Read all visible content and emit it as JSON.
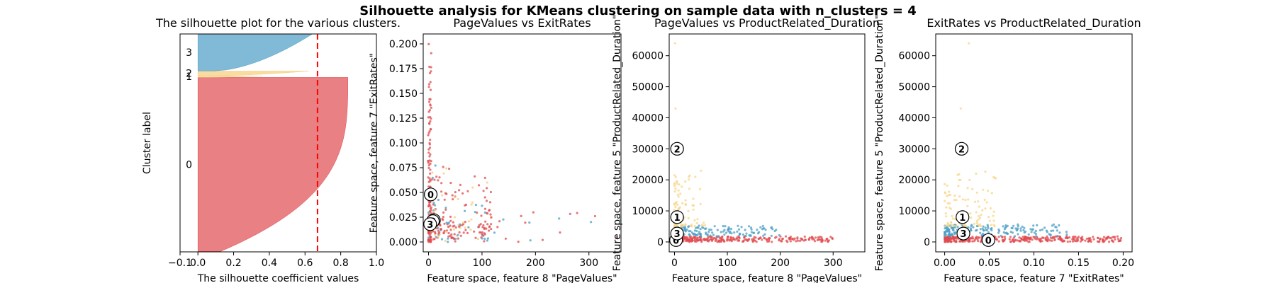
{
  "suptitle": "Silhouette analysis for KMeans clustering on sample data with n_clusters = 4",
  "colors": {
    "cluster_0": "#e04a4e",
    "cluster_1": "#f7d58a",
    "cluster_2": "#f5cd7a",
    "cluster_3": "#4a9dc4",
    "avg_line": "#ff0000"
  },
  "chart_data": [
    {
      "type": "area",
      "title": "The silhouette plot for the various clusters.",
      "xlabel": "The silhouette coefficient values",
      "ylabel": "Cluster label",
      "xlim": [
        -0.1,
        1.0
      ],
      "xticks": [
        "−0.1",
        "0.0",
        "0.2",
        "0.4",
        "0.6",
        "0.8",
        "1.0"
      ],
      "xtick_values": [
        -0.1,
        0.0,
        0.2,
        0.4,
        0.6,
        0.8,
        1.0
      ],
      "average_silhouette": 0.67,
      "clusters": [
        {
          "label": "0",
          "size": 9900,
          "max": 0.84,
          "min": 0.0
        },
        {
          "label": "1",
          "size": 80,
          "max": 0.36,
          "min": 0.0
        },
        {
          "label": "2",
          "size": 260,
          "max": 0.62,
          "min": 0.0
        },
        {
          "label": "3",
          "size": 2090,
          "max": 0.64,
          "min": 0.0
        }
      ]
    },
    {
      "type": "scatter",
      "title": "PageValues vs ExitRates",
      "xlabel": "Feature space, feature 8 \"PageValues\"",
      "ylabel": "Feature space, feature 7 \"ExitRates\"",
      "xlim": [
        -10,
        360
      ],
      "ylim": [
        -0.01,
        0.21
      ],
      "xticks": [
        "0",
        "100",
        "200",
        "300"
      ],
      "xtick_values": [
        0,
        100,
        200,
        300
      ],
      "yticks": [
        "0.000",
        "0.025",
        "0.050",
        "0.075",
        "0.100",
        "0.125",
        "0.150",
        "0.175",
        "0.200"
      ],
      "ytick_values": [
        0,
        0.025,
        0.05,
        0.075,
        0.1,
        0.125,
        0.15,
        0.175,
        0.2
      ],
      "centers": [
        {
          "label": "0",
          "x": 4,
          "y": 0.048
        },
        {
          "label": "1",
          "x": 10,
          "y": 0.022
        },
        {
          "label": "2",
          "x": 8,
          "y": 0.021
        },
        {
          "label": "3",
          "x": 3,
          "y": 0.018
        }
      ]
    },
    {
      "type": "scatter",
      "title": "PageValues vs ProductRelated_Duration",
      "xlabel": "Feature space, feature 8 \"PageValues\"",
      "ylabel": "Feature space, feature 5 \"ProductRelated_Duration\"",
      "xlim": [
        -10,
        360
      ],
      "ylim": [
        -3200,
        67000
      ],
      "xticks": [
        "0",
        "100",
        "200",
        "300"
      ],
      "xtick_values": [
        0,
        100,
        200,
        300
      ],
      "yticks": [
        "0",
        "10000",
        "20000",
        "30000",
        "40000",
        "50000",
        "60000"
      ],
      "ytick_values": [
        0,
        10000,
        20000,
        30000,
        40000,
        50000,
        60000
      ],
      "centers": [
        {
          "label": "0",
          "x": 3,
          "y": 600
        },
        {
          "label": "1",
          "x": 5,
          "y": 8000
        },
        {
          "label": "2",
          "x": 5,
          "y": 30000
        },
        {
          "label": "3",
          "x": 5,
          "y": 2700
        }
      ]
    },
    {
      "type": "scatter",
      "title": "ExitRates vs ProductRelated_Duration",
      "xlabel": "Feature space, feature 7 \"ExitRates\"",
      "ylabel": "Feature space, feature 5 \"ProductRelated_Duration\"",
      "xlim": [
        -0.01,
        0.21
      ],
      "ylim": [
        -3200,
        67000
      ],
      "xticks": [
        "0.00",
        "0.05",
        "0.10",
        "0.15",
        "0.20"
      ],
      "xtick_values": [
        0,
        0.05,
        0.1,
        0.15,
        0.2
      ],
      "yticks": [
        "0",
        "10000",
        "20000",
        "30000",
        "40000",
        "50000",
        "60000"
      ],
      "ytick_values": [
        0,
        10000,
        20000,
        30000,
        40000,
        50000,
        60000
      ],
      "centers": [
        {
          "label": "0",
          "x": 0.049,
          "y": 600
        },
        {
          "label": "1",
          "x": 0.02,
          "y": 8000
        },
        {
          "label": "2",
          "x": 0.019,
          "y": 30000
        },
        {
          "label": "3",
          "x": 0.021,
          "y": 2700
        }
      ]
    }
  ]
}
